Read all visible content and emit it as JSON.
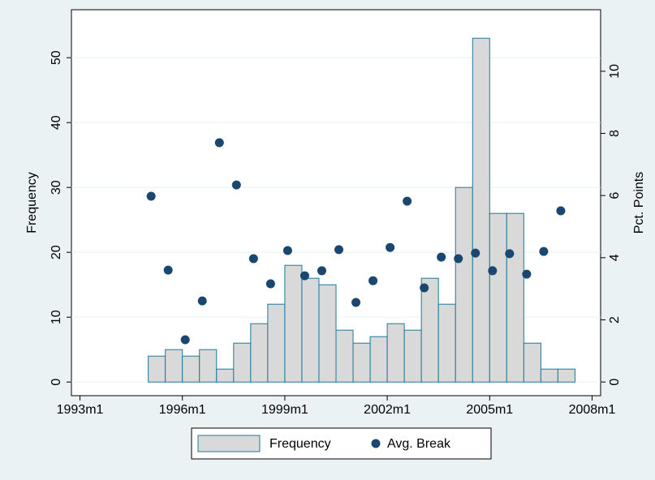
{
  "chart_data": {
    "type": "histogram",
    "bins": [
      420,
      426,
      432,
      438,
      444,
      450,
      456,
      462,
      468,
      474,
      480,
      486,
      492,
      498,
      504,
      510,
      516,
      522,
      528,
      534,
      540,
      546,
      552,
      558,
      564,
      570
    ],
    "series": [
      {
        "name": "Frequency",
        "type": "histogram",
        "color": "#d9d9d9",
        "edge_color": "#1a7a9c",
        "values": [
          4,
          5,
          4,
          5,
          2,
          6,
          9,
          12,
          18,
          16,
          15,
          8,
          6,
          7,
          9,
          8,
          16,
          12,
          30,
          53,
          26,
          26,
          6,
          2,
          2
        ]
      },
      {
        "name": "Avg. Break",
        "type": "scatter",
        "axis": "y2",
        "color": "#1a476f",
        "x": [
          421,
          427,
          433,
          439,
          445,
          451,
          457,
          463,
          469,
          475,
          481,
          487,
          493,
          499,
          505,
          511,
          517,
          523,
          529,
          535,
          541,
          547,
          553,
          559,
          565
        ],
        "values": [
          5.98,
          3.6,
          1.36,
          2.61,
          7.7,
          6.34,
          3.97,
          3.16,
          4.23,
          3.42,
          3.58,
          4.26,
          2.56,
          3.26,
          4.33,
          5.82,
          3.03,
          4.02,
          3.97,
          4.15,
          3.58,
          4.13,
          3.47,
          4.2,
          5.51
        ]
      }
    ],
    "y_label": "Frequency",
    "y2_label": "Pct. Points",
    "xlim": [
      393,
      579
    ],
    "xticks": [
      {
        "value": 396,
        "label": "1993m1"
      },
      {
        "value": 432,
        "label": "1996m1"
      },
      {
        "value": 468,
        "label": "1999m1"
      },
      {
        "value": 504,
        "label": "2002m1"
      },
      {
        "value": 540,
        "label": "2005m1"
      },
      {
        "value": 576,
        "label": "2008m1"
      }
    ],
    "ylim": [
      -2.1,
      57.4
    ],
    "yticks": [
      0,
      10,
      20,
      30,
      40,
      50
    ],
    "y2lim": [
      -0.44,
      11.98
    ],
    "y2ticks": [
      0,
      2,
      4,
      6,
      8,
      10
    ],
    "grid": true,
    "legend": "bottom"
  }
}
